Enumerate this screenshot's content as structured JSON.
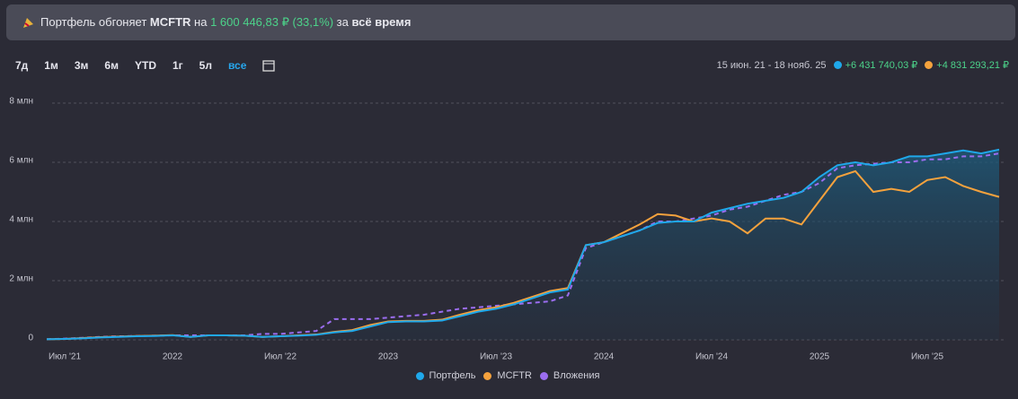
{
  "banner": {
    "parts": [
      "Портфель обгоняет",
      "MCFTR",
      "на",
      "1 600 446,83 ₽",
      "(33,1%)",
      "за",
      "всё время"
    ]
  },
  "periods": {
    "buttons": [
      "7д",
      "1м",
      "3м",
      "6м",
      "YTD",
      "1г",
      "5л",
      "все"
    ],
    "active": 7
  },
  "summary": {
    "range": "15 июн. 21 - 18 нояб. 25",
    "changes": [
      "+6 431 740,03 ₽",
      "+4 831 293,21 ₽"
    ]
  },
  "chart_data": {
    "type": "line",
    "x": [
      "2021-06",
      "2021-07",
      "2021-08",
      "2021-09",
      "2021-10",
      "2021-11",
      "2021-12",
      "2022-01",
      "2022-02",
      "2022-03",
      "2022-04",
      "2022-05",
      "2022-06",
      "2022-07",
      "2022-08",
      "2022-09",
      "2022-10",
      "2022-11",
      "2022-12",
      "2023-01",
      "2023-02",
      "2023-03",
      "2023-04",
      "2023-05",
      "2023-06",
      "2023-07",
      "2023-08",
      "2023-09",
      "2023-10",
      "2023-11",
      "2023-12",
      "2024-01",
      "2024-02",
      "2024-03",
      "2024-04",
      "2024-05",
      "2024-06",
      "2024-07",
      "2024-08",
      "2024-09",
      "2024-10",
      "2024-11",
      "2024-12",
      "2025-01",
      "2025-02",
      "2025-03",
      "2025-04",
      "2025-05",
      "2025-06",
      "2025-07",
      "2025-08",
      "2025-09",
      "2025-10",
      "2025-11"
    ],
    "xlim": [
      "2021-06",
      "2025-11"
    ],
    "xticks": [
      {
        "value": "2021-07",
        "label": "Июл '21"
      },
      {
        "value": "2022-01",
        "label": "2022"
      },
      {
        "value": "2022-07",
        "label": "Июл '22"
      },
      {
        "value": "2023-01",
        "label": "2023"
      },
      {
        "value": "2023-07",
        "label": "Июл '23"
      },
      {
        "value": "2024-01",
        "label": "2024"
      },
      {
        "value": "2024-07",
        "label": "Июл '24"
      },
      {
        "value": "2025-01",
        "label": "2025"
      },
      {
        "value": "2025-07",
        "label": "Июл '25"
      }
    ],
    "ylim": [
      0,
      8
    ],
    "yticks": [
      0,
      {
        "value": 2,
        "label": "2 млн"
      },
      {
        "value": 4,
        "label": "4 млн"
      },
      {
        "value": 6,
        "label": "6 млн"
      },
      {
        "value": 8,
        "label": "8 млн"
      }
    ],
    "grid": true,
    "series": [
      {
        "name": "Портфель",
        "color": "#1fa8ea",
        "values": [
          0.02,
          0.03,
          0.05,
          0.08,
          0.1,
          0.12,
          0.13,
          0.15,
          0.1,
          0.15,
          0.15,
          0.14,
          0.1,
          0.12,
          0.14,
          0.17,
          0.25,
          0.3,
          0.45,
          0.6,
          0.62,
          0.62,
          0.65,
          0.8,
          0.95,
          1.05,
          1.2,
          1.4,
          1.6,
          1.7,
          3.2,
          3.3,
          3.5,
          3.7,
          3.95,
          4.0,
          4.0,
          4.3,
          4.45,
          4.6,
          4.7,
          4.8,
          5.0,
          5.5,
          5.9,
          6.0,
          5.9,
          6.0,
          6.2,
          6.2,
          6.3,
          6.4,
          6.3,
          6.43
        ]
      },
      {
        "name": "MCFTR",
        "color": "#f5a23d",
        "values": [
          0.02,
          0.03,
          0.06,
          0.09,
          0.11,
          0.13,
          0.14,
          0.16,
          0.1,
          0.15,
          0.15,
          0.14,
          0.1,
          0.12,
          0.15,
          0.18,
          0.27,
          0.33,
          0.5,
          0.62,
          0.64,
          0.64,
          0.68,
          0.85,
          1.0,
          1.1,
          1.25,
          1.45,
          1.65,
          1.75,
          3.2,
          3.3,
          3.6,
          3.9,
          4.25,
          4.2,
          4.0,
          4.1,
          4.0,
          3.6,
          4.1,
          4.1,
          3.9,
          4.7,
          5.5,
          5.7,
          5.0,
          5.1,
          5.0,
          5.4,
          5.5,
          5.2,
          5.0,
          4.83
        ]
      },
      {
        "name": "Вложения",
        "color": "#9b6df0",
        "dashed": true,
        "values": [
          0.02,
          0.04,
          0.07,
          0.1,
          0.12,
          0.13,
          0.14,
          0.15,
          0.15,
          0.15,
          0.15,
          0.15,
          0.2,
          0.2,
          0.25,
          0.3,
          0.7,
          0.7,
          0.7,
          0.75,
          0.8,
          0.85,
          0.95,
          1.05,
          1.1,
          1.15,
          1.2,
          1.25,
          1.3,
          1.5,
          3.1,
          3.3,
          3.5,
          3.7,
          4.0,
          4.0,
          4.1,
          4.2,
          4.4,
          4.5,
          4.7,
          4.9,
          5.0,
          5.3,
          5.8,
          5.9,
          5.95,
          6.0,
          6.0,
          6.1,
          6.1,
          6.2,
          6.2,
          6.3
        ]
      }
    ],
    "area_series": 0
  }
}
